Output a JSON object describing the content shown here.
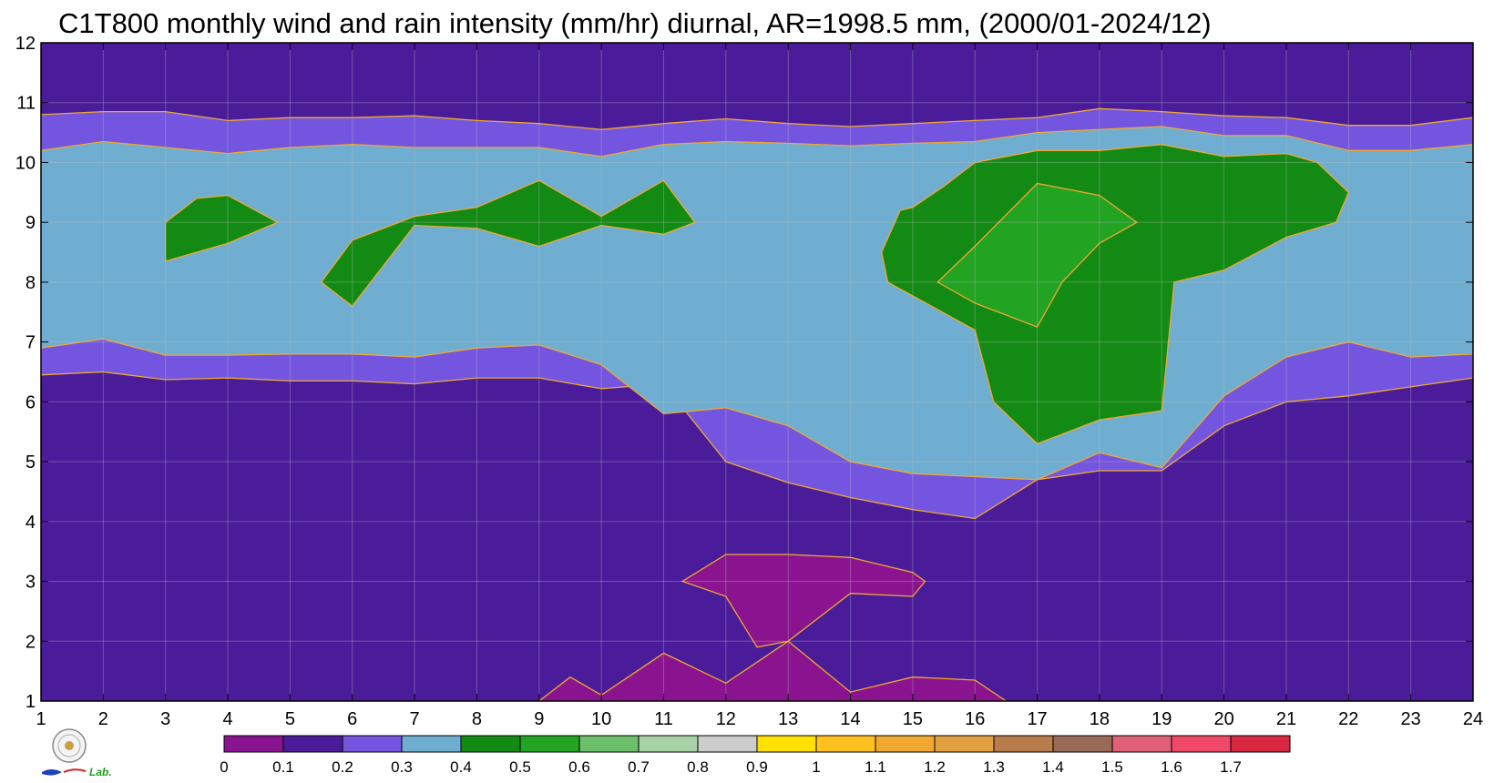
{
  "chart_data": {
    "type": "heatmap",
    "title": "C1T800 monthly wind and rain intensity (mm/hr) diurnal, AR=1998.5 mm, (2000/01-2024/12)",
    "xlabel": "",
    "ylabel": "",
    "x_ticks": [
      1,
      2,
      3,
      4,
      5,
      6,
      7,
      8,
      9,
      10,
      11,
      12,
      13,
      14,
      15,
      16,
      17,
      18,
      19,
      20,
      21,
      22,
      23,
      24
    ],
    "y_ticks": [
      1,
      2,
      3,
      4,
      5,
      6,
      7,
      8,
      9,
      10,
      11,
      12
    ],
    "xlim": [
      1,
      24
    ],
    "ylim": [
      1,
      12
    ],
    "grid": true,
    "contour_levels": [
      0.1,
      0.2,
      0.3,
      0.4,
      0.5,
      0.6
    ],
    "contour_line_color": "#F0A830",
    "regions": [
      {
        "level": 0.2,
        "color": "#4A1C9A",
        "note": "background"
      },
      {
        "level": 0.3,
        "color": "#7455E0",
        "x": [
          1,
          2,
          3,
          4,
          5,
          6,
          7,
          8,
          9,
          10,
          11,
          12,
          13,
          14,
          15,
          16,
          17,
          18,
          19,
          20,
          21,
          22,
          23,
          24,
          24,
          23,
          22,
          21,
          20,
          19,
          18,
          17,
          16,
          15,
          14,
          13,
          12,
          11,
          10,
          9,
          8,
          7,
          6,
          5,
          4,
          3,
          2,
          1
        ],
        "y": [
          10.8,
          10.85,
          10.85,
          10.7,
          10.75,
          10.75,
          10.78,
          10.7,
          10.65,
          10.55,
          10.65,
          10.73,
          10.65,
          10.6,
          10.65,
          10.7,
          10.75,
          10.9,
          10.85,
          10.78,
          10.75,
          10.62,
          10.62,
          10.75,
          6.4,
          6.25,
          6.1,
          6.0,
          5.6,
          4.85,
          4.85,
          4.7,
          4.05,
          4.2,
          4.4,
          4.65,
          5.0,
          6.3,
          6.22,
          6.4,
          6.4,
          6.3,
          6.35,
          6.35,
          6.4,
          6.37,
          6.5,
          6.45
        ]
      },
      {
        "level": 0.4,
        "color": "#6FAED0",
        "x": [
          1,
          2,
          3,
          4,
          5,
          6,
          7,
          8,
          9,
          10,
          11,
          12,
          13,
          14,
          15,
          16,
          17,
          18,
          19,
          20,
          21,
          22,
          23,
          24,
          24,
          23,
          22,
          21,
          20,
          19,
          18,
          17,
          16,
          15,
          14,
          13,
          12,
          11,
          10,
          9,
          8,
          7,
          6,
          5,
          4,
          3,
          2,
          1
        ],
        "y": [
          10.2,
          10.35,
          10.25,
          10.15,
          10.25,
          10.3,
          10.25,
          10.25,
          10.25,
          10.1,
          10.3,
          10.35,
          10.32,
          10.28,
          10.32,
          10.35,
          10.5,
          10.55,
          10.6,
          10.45,
          10.45,
          10.2,
          10.2,
          10.3,
          6.8,
          6.75,
          7.0,
          6.75,
          6.1,
          4.9,
          5.15,
          4.7,
          4.75,
          4.8,
          5.0,
          5.6,
          5.9,
          5.8,
          6.62,
          6.95,
          6.9,
          6.75,
          6.8,
          6.8,
          6.78,
          6.78,
          7.05,
          6.9
        ]
      },
      {
        "level": 0.5,
        "color": "#128A14",
        "x": [
          15,
          15.5,
          16,
          17,
          18,
          19,
          20,
          21,
          21.5,
          22,
          21.8,
          21,
          20,
          19.2,
          19,
          18,
          17,
          16.3,
          16,
          15.3,
          14.6,
          14.5,
          14.8
        ],
        "y": [
          9.25,
          9.6,
          10.0,
          10.2,
          10.2,
          10.3,
          10.1,
          10.15,
          10.0,
          9.5,
          9.0,
          8.75,
          8.2,
          8.0,
          5.85,
          5.7,
          5.3,
          6.0,
          7.2,
          7.6,
          8.0,
          8.5,
          9.2
        ]
      },
      {
        "level": 0.5,
        "color": "#128A14",
        "x": [
          3,
          3.5,
          4,
          4.8,
          4,
          3
        ],
        "y": [
          9.0,
          9.4,
          9.45,
          9.0,
          8.65,
          8.35
        ]
      },
      {
        "level": 0.5,
        "color": "#128A14",
        "x": [
          5.5,
          6,
          7,
          8,
          9,
          10,
          11,
          11.5,
          11,
          10,
          9,
          8,
          7,
          6
        ],
        "y": [
          8.0,
          8.7,
          9.1,
          9.25,
          9.7,
          9.1,
          9.7,
          9.0,
          8.8,
          8.95,
          8.6,
          8.9,
          8.95,
          7.6
        ]
      },
      {
        "level": 0.6,
        "color": "#22A322",
        "x": [
          15.4,
          16,
          17,
          18,
          18.6,
          18,
          17.4,
          17,
          16
        ],
        "y": [
          8.0,
          8.6,
          9.65,
          9.45,
          9.0,
          8.65,
          8.0,
          7.25,
          7.65
        ]
      },
      {
        "level": 0.1,
        "color": "#8A1490",
        "x": [
          9,
          9.5,
          10,
          11,
          12,
          13,
          14,
          15,
          16,
          16.5,
          16.5,
          9,
          9
        ],
        "y": [
          1.0,
          1.4,
          1.1,
          1.8,
          1.3,
          2.0,
          1.15,
          1.4,
          1.35,
          1.0,
          1.0,
          1.0,
          1.0
        ]
      },
      {
        "level": 0.1,
        "color": "#8A1490",
        "x": [
          11.3,
          12,
          12.5,
          13,
          14,
          15,
          15.2,
          15,
          14,
          13,
          12.5,
          12
        ],
        "y": [
          3.0,
          3.45,
          3.45,
          3.45,
          3.4,
          3.15,
          3.0,
          2.75,
          2.8,
          2.0,
          1.9,
          2.75
        ]
      }
    ],
    "colorbar": {
      "ticks": [
        "0",
        "0.1",
        "0.2",
        "0.3",
        "0.4",
        "0.5",
        "0.6",
        "0.7",
        "0.8",
        "0.9",
        "1",
        "1.1",
        "1.2",
        "1.3",
        "1.4",
        "1.5",
        "1.6",
        "1.7"
      ],
      "colors": [
        "#8A1490",
        "#4A1C9A",
        "#7455E0",
        "#6FAED0",
        "#128A14",
        "#22A322",
        "#6CC06C",
        "#A6D2A6",
        "#CCCCCC",
        "#FFE000",
        "#FFC020",
        "#F0A830",
        "#E0A040",
        "#B87C4C",
        "#9A6A58",
        "#E06078",
        "#F04868",
        "#D82840"
      ]
    }
  }
}
